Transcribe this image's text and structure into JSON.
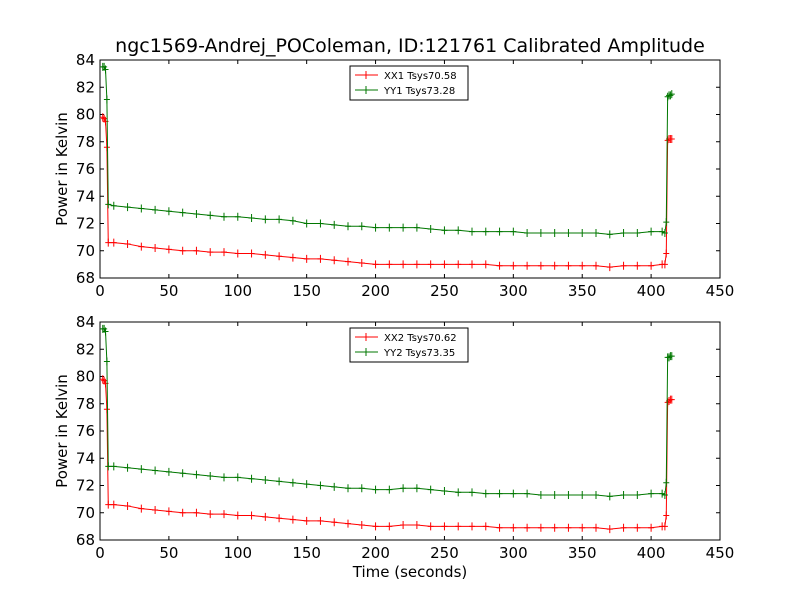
{
  "title": "ngc1569-Andrej_POColeman, ID:121761 Calibrated Amplitude",
  "chart_data": [
    {
      "type": "line",
      "xlabel": "",
      "ylabel": "Power in Kelvin",
      "xlim": [
        0,
        450
      ],
      "ylim": [
        68,
        84
      ],
      "xticks": [
        "0",
        "50",
        "100",
        "150",
        "200",
        "250",
        "300",
        "350",
        "400",
        "450"
      ],
      "yticks": [
        "68",
        "70",
        "72",
        "74",
        "76",
        "78",
        "80",
        "82",
        "84"
      ],
      "legend_position": "upper-center",
      "series": [
        {
          "name": "XX1 Tsys70.58",
          "color": "#ff0000",
          "marker": "plus",
          "points": [
            [
              2,
              79.8
            ],
            [
              3,
              79.7
            ],
            [
              4,
              79.5
            ],
            [
              5,
              77.6
            ],
            [
              6,
              70.6
            ],
            [
              10,
              70.6
            ],
            [
              20,
              70.5
            ],
            [
              30,
              70.3
            ],
            [
              40,
              70.2
            ],
            [
              50,
              70.1
            ],
            [
              60,
              70.0
            ],
            [
              70,
              70.0
            ],
            [
              80,
              69.9
            ],
            [
              90,
              69.9
            ],
            [
              100,
              69.8
            ],
            [
              110,
              69.8
            ],
            [
              120,
              69.7
            ],
            [
              130,
              69.6
            ],
            [
              140,
              69.5
            ],
            [
              150,
              69.4
            ],
            [
              160,
              69.4
            ],
            [
              170,
              69.3
            ],
            [
              180,
              69.2
            ],
            [
              190,
              69.1
            ],
            [
              200,
              69.0
            ],
            [
              210,
              69.0
            ],
            [
              220,
              69.0
            ],
            [
              230,
              69.0
            ],
            [
              240,
              69.0
            ],
            [
              250,
              69.0
            ],
            [
              260,
              69.0
            ],
            [
              270,
              69.0
            ],
            [
              280,
              69.0
            ],
            [
              290,
              68.9
            ],
            [
              300,
              68.9
            ],
            [
              310,
              68.9
            ],
            [
              320,
              68.9
            ],
            [
              330,
              68.9
            ],
            [
              340,
              68.9
            ],
            [
              350,
              68.9
            ],
            [
              360,
              68.9
            ],
            [
              370,
              68.8
            ],
            [
              380,
              68.9
            ],
            [
              390,
              68.9
            ],
            [
              400,
              68.9
            ],
            [
              408,
              69.0
            ],
            [
              410,
              69.0
            ],
            [
              411,
              69.8
            ],
            [
              412,
              78.1
            ],
            [
              413,
              78.2
            ],
            [
              414,
              78.2
            ],
            [
              415,
              78.2
            ]
          ]
        },
        {
          "name": "YY1 Tsys73.28",
          "color": "#007700",
          "marker": "plus",
          "points": [
            [
              2,
              83.5
            ],
            [
              3,
              83.5
            ],
            [
              4,
              83.3
            ],
            [
              5,
              81.1
            ],
            [
              6,
              73.4
            ],
            [
              10,
              73.3
            ],
            [
              20,
              73.2
            ],
            [
              30,
              73.1
            ],
            [
              40,
              73.0
            ],
            [
              50,
              72.9
            ],
            [
              60,
              72.8
            ],
            [
              70,
              72.7
            ],
            [
              80,
              72.6
            ],
            [
              90,
              72.5
            ],
            [
              100,
              72.5
            ],
            [
              110,
              72.4
            ],
            [
              120,
              72.3
            ],
            [
              130,
              72.3
            ],
            [
              140,
              72.2
            ],
            [
              150,
              72.0
            ],
            [
              160,
              72.0
            ],
            [
              170,
              71.9
            ],
            [
              180,
              71.8
            ],
            [
              190,
              71.8
            ],
            [
              200,
              71.7
            ],
            [
              210,
              71.7
            ],
            [
              220,
              71.7
            ],
            [
              230,
              71.7
            ],
            [
              240,
              71.6
            ],
            [
              250,
              71.5
            ],
            [
              260,
              71.5
            ],
            [
              270,
              71.4
            ],
            [
              280,
              71.4
            ],
            [
              290,
              71.4
            ],
            [
              300,
              71.4
            ],
            [
              310,
              71.3
            ],
            [
              320,
              71.3
            ],
            [
              330,
              71.3
            ],
            [
              340,
              71.3
            ],
            [
              350,
              71.3
            ],
            [
              360,
              71.3
            ],
            [
              370,
              71.2
            ],
            [
              380,
              71.3
            ],
            [
              390,
              71.3
            ],
            [
              400,
              71.4
            ],
            [
              408,
              71.4
            ],
            [
              410,
              71.3
            ],
            [
              411,
              72.1
            ],
            [
              412,
              81.3
            ],
            [
              413,
              81.4
            ],
            [
              414,
              81.4
            ],
            [
              415,
              81.5
            ]
          ]
        }
      ]
    },
    {
      "type": "line",
      "xlabel": "Time (seconds)",
      "ylabel": "Power in Kelvin",
      "xlim": [
        0,
        450
      ],
      "ylim": [
        68,
        84
      ],
      "xticks": [
        "0",
        "50",
        "100",
        "150",
        "200",
        "250",
        "300",
        "350",
        "400",
        "450"
      ],
      "yticks": [
        "68",
        "70",
        "72",
        "74",
        "76",
        "78",
        "80",
        "82",
        "84"
      ],
      "legend_position": "upper-center",
      "series": [
        {
          "name": "XX2 Tsys70.62",
          "color": "#ff0000",
          "marker": "plus",
          "points": [
            [
              2,
              79.8
            ],
            [
              3,
              79.7
            ],
            [
              4,
              79.5
            ],
            [
              5,
              77.6
            ],
            [
              6,
              70.6
            ],
            [
              10,
              70.6
            ],
            [
              20,
              70.5
            ],
            [
              30,
              70.3
            ],
            [
              40,
              70.2
            ],
            [
              50,
              70.1
            ],
            [
              60,
              70.0
            ],
            [
              70,
              70.0
            ],
            [
              80,
              69.9
            ],
            [
              90,
              69.9
            ],
            [
              100,
              69.8
            ],
            [
              110,
              69.8
            ],
            [
              120,
              69.7
            ],
            [
              130,
              69.6
            ],
            [
              140,
              69.5
            ],
            [
              150,
              69.4
            ],
            [
              160,
              69.4
            ],
            [
              170,
              69.3
            ],
            [
              180,
              69.2
            ],
            [
              190,
              69.1
            ],
            [
              200,
              69.0
            ],
            [
              210,
              69.0
            ],
            [
              220,
              69.1
            ],
            [
              230,
              69.1
            ],
            [
              240,
              69.0
            ],
            [
              250,
              69.0
            ],
            [
              260,
              69.0
            ],
            [
              270,
              69.0
            ],
            [
              280,
              69.0
            ],
            [
              290,
              68.9
            ],
            [
              300,
              68.9
            ],
            [
              310,
              68.9
            ],
            [
              320,
              68.9
            ],
            [
              330,
              68.9
            ],
            [
              340,
              68.9
            ],
            [
              350,
              68.9
            ],
            [
              360,
              68.9
            ],
            [
              370,
              68.8
            ],
            [
              380,
              68.9
            ],
            [
              390,
              68.9
            ],
            [
              400,
              68.9
            ],
            [
              408,
              69.0
            ],
            [
              410,
              69.0
            ],
            [
              411,
              69.8
            ],
            [
              412,
              78.1
            ],
            [
              413,
              78.2
            ],
            [
              414,
              78.3
            ],
            [
              415,
              78.3
            ]
          ]
        },
        {
          "name": "YY2 Tsys73.35",
          "color": "#007700",
          "marker": "plus",
          "points": [
            [
              2,
              83.5
            ],
            [
              3,
              83.5
            ],
            [
              4,
              83.3
            ],
            [
              5,
              81.1
            ],
            [
              6,
              73.4
            ],
            [
              10,
              73.4
            ],
            [
              20,
              73.3
            ],
            [
              30,
              73.2
            ],
            [
              40,
              73.1
            ],
            [
              50,
              73.0
            ],
            [
              60,
              72.9
            ],
            [
              70,
              72.8
            ],
            [
              80,
              72.7
            ],
            [
              90,
              72.6
            ],
            [
              100,
              72.6
            ],
            [
              110,
              72.5
            ],
            [
              120,
              72.4
            ],
            [
              130,
              72.3
            ],
            [
              140,
              72.2
            ],
            [
              150,
              72.1
            ],
            [
              160,
              72.0
            ],
            [
              170,
              71.9
            ],
            [
              180,
              71.8
            ],
            [
              190,
              71.8
            ],
            [
              200,
              71.7
            ],
            [
              210,
              71.7
            ],
            [
              220,
              71.8
            ],
            [
              230,
              71.8
            ],
            [
              240,
              71.7
            ],
            [
              250,
              71.6
            ],
            [
              260,
              71.5
            ],
            [
              270,
              71.5
            ],
            [
              280,
              71.4
            ],
            [
              290,
              71.4
            ],
            [
              300,
              71.4
            ],
            [
              310,
              71.4
            ],
            [
              320,
              71.3
            ],
            [
              330,
              71.3
            ],
            [
              340,
              71.3
            ],
            [
              350,
              71.3
            ],
            [
              360,
              71.3
            ],
            [
              370,
              71.2
            ],
            [
              380,
              71.3
            ],
            [
              390,
              71.3
            ],
            [
              400,
              71.4
            ],
            [
              408,
              71.4
            ],
            [
              410,
              71.3
            ],
            [
              411,
              72.2
            ],
            [
              412,
              81.4
            ],
            [
              413,
              81.4
            ],
            [
              414,
              81.5
            ],
            [
              415,
              81.5
            ]
          ]
        }
      ]
    }
  ]
}
